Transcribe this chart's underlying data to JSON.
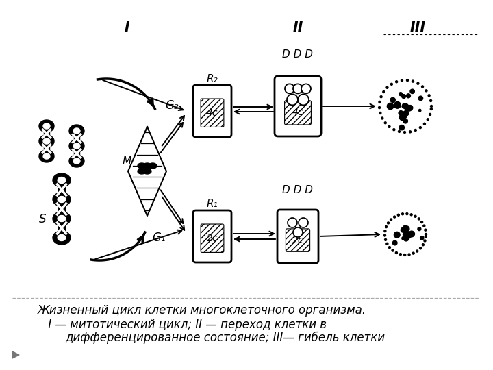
{
  "background_color": "#ffffff",
  "title_line1": "Жизненный цикл клетки многоклеточного организма.",
  "title_line2": " I — митотический цикл; II — переход клетки в",
  "title_line3": "дифференцированное состояние; III— гибель клетки",
  "label_I": "I",
  "label_II": "II",
  "label_III": "III",
  "label_G2": "G₂",
  "label_G1": "G₁",
  "label_S": "S",
  "label_M": "M",
  "label_R2": "R₂",
  "label_R1": "R₁",
  "label_4c_1": "4c",
  "label_4c_2": "4c",
  "label_2c_1": "2c",
  "label_2c_2": "2c",
  "label_DDD": "D D D",
  "text_color": "#000000",
  "line_color": "#000000",
  "figsize": [
    7.2,
    5.4
  ],
  "dpi": 100
}
